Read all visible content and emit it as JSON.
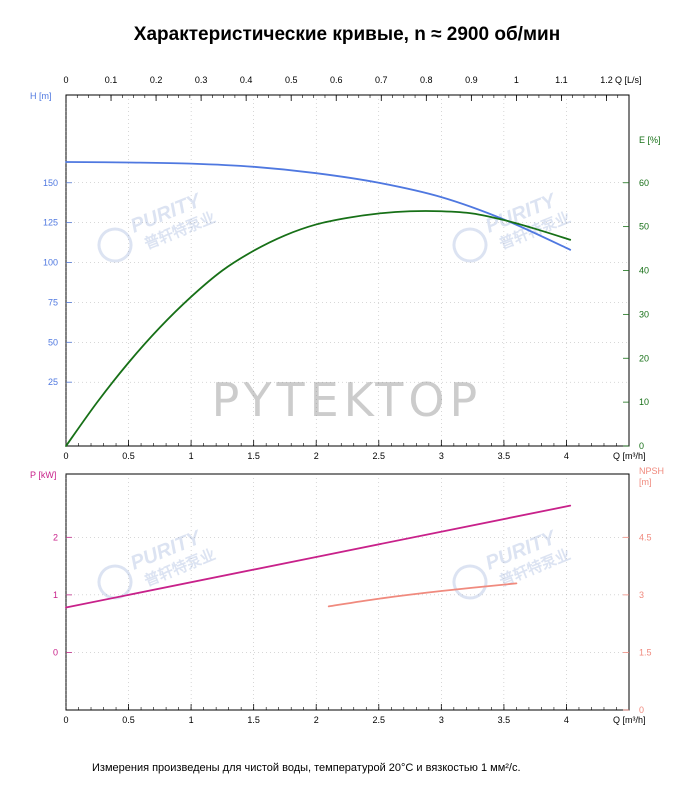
{
  "title": "Характеристические кривые, n ≈ 2900 об/мин",
  "footnote": "Измерения произведены для чистой воды, температурой 20°C и вязкостью 1 мм²/с.",
  "watermarks": {
    "center": "PYTEKTOP",
    "brand_latin": "PURITY",
    "brand_cn": "普轩特泵业"
  },
  "colors": {
    "head": "#4f78e0",
    "efficiency": "#177017",
    "power": "#c8218a",
    "npsh": "#f08a7e",
    "axis": "#000000",
    "grid": "#7a7a7a"
  },
  "chart_data": [
    {
      "type": "line",
      "name": "upper",
      "x_axis": {
        "label": "Q [m³/h]",
        "ticks": [
          "0",
          "0.5",
          "1",
          "1.5",
          "2",
          "2.5",
          "3",
          "3.5",
          "4"
        ],
        "tick_values": [
          0,
          0.5,
          1,
          1.5,
          2,
          2.5,
          3,
          3.5,
          4
        ],
        "range": [
          0,
          4.5
        ]
      },
      "x_top_axis": {
        "label": "Q [L/s]",
        "ticks": [
          "0",
          "0.1",
          "0.2",
          "0.3",
          "0.4",
          "0.5",
          "0.6",
          "0.7",
          "0.8",
          "0.9",
          "1",
          "1.1",
          "1.2"
        ],
        "tick_values": [
          0,
          0.1,
          0.2,
          0.3,
          0.4,
          0.5,
          0.6,
          0.7,
          0.8,
          0.9,
          1,
          1.1,
          1.2
        ],
        "range": [
          0,
          1.25
        ]
      },
      "y_left_axis": {
        "label": "H [m]",
        "ticks": [
          "25",
          "50",
          "75",
          "100",
          "125",
          "150"
        ],
        "tick_values": [
          25,
          50,
          75,
          100,
          125,
          150
        ],
        "range": [
          -15,
          205
        ]
      },
      "y_right_axis": {
        "label": "E [%]",
        "ticks": [
          "0",
          "10",
          "20",
          "30",
          "40",
          "50",
          "60"
        ],
        "tick_values": [
          0,
          10,
          20,
          30,
          40,
          50,
          60
        ],
        "range": [
          0,
          80
        ]
      },
      "series": [
        {
          "axis": "left",
          "x": [
            0,
            0.5,
            1,
            1.5,
            2,
            2.5,
            3,
            3.5,
            4.03
          ],
          "y": [
            163,
            162.7,
            162,
            160,
            156,
            150,
            141,
            127,
            108
          ]
        },
        {
          "axis": "right",
          "x": [
            0,
            0.25,
            0.5,
            0.75,
            1,
            1.25,
            1.5,
            1.75,
            2,
            2.25,
            2.5,
            2.75,
            3,
            3.25,
            3.5,
            3.75,
            4.03
          ],
          "y": [
            0,
            10,
            19,
            27,
            34,
            40,
            44.5,
            48,
            50.5,
            52,
            53,
            53.5,
            53.5,
            53,
            51.5,
            49.5,
            47
          ]
        }
      ],
      "grid": false
    },
    {
      "type": "line",
      "name": "lower",
      "x_axis": {
        "label": "Q [m³/h]",
        "ticks": [
          "0",
          "0.5",
          "1",
          "1.5",
          "2",
          "2.5",
          "3",
          "3.5",
          "4"
        ],
        "tick_values": [
          0,
          0.5,
          1,
          1.5,
          2,
          2.5,
          3,
          3.5,
          4
        ],
        "range": [
          0,
          4.5
        ]
      },
      "y_left_axis": {
        "label": "P [kW]",
        "ticks": [
          "0",
          "1",
          "2"
        ],
        "tick_values": [
          0,
          1,
          2
        ],
        "range": [
          -1,
          3.1
        ]
      },
      "y_right_axis": {
        "label": "NPSH [m]",
        "ticks": [
          "0",
          "1.5",
          "3",
          "4.5"
        ],
        "tick_values": [
          0,
          1.5,
          3,
          4.5
        ],
        "range": [
          0,
          6.15
        ]
      },
      "series": [
        {
          "axis": "left",
          "x": [
            0,
            4.03
          ],
          "y": [
            0.78,
            2.55
          ]
        },
        {
          "axis": "right",
          "x": [
            2.1,
            2.5,
            3.0,
            3.6
          ],
          "y": [
            2.7,
            2.9,
            3.1,
            3.3
          ]
        }
      ],
      "grid": false
    }
  ]
}
